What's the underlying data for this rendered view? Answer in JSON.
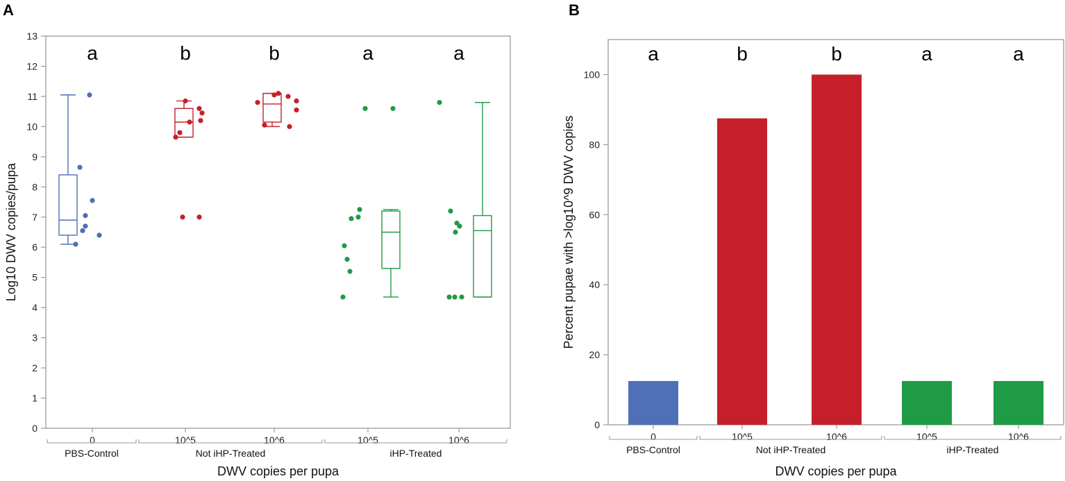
{
  "panels": {
    "a": {
      "letter": "A"
    },
    "b": {
      "letter": "B"
    }
  },
  "colors": {
    "blue": "#4f6fb6",
    "red": "#c5202a",
    "green": "#1f9b45",
    "frame": "#9a9a9a"
  },
  "chart_data": [
    {
      "type": "scatter",
      "subtype": "box-and-points",
      "panel": "A",
      "ylabel": "Log10 DWV copies/pupa",
      "xlabel": "DWV copies per pupa",
      "ylim": [
        0,
        13
      ],
      "yticks": [
        0,
        1,
        2,
        3,
        4,
        5,
        6,
        7,
        8,
        9,
        10,
        11,
        12,
        13
      ],
      "groups": [
        "PBS-Control",
        "Not iHP-Treated",
        "iHP-Treated"
      ],
      "categories": [
        {
          "label": "0",
          "group": "PBS-Control",
          "color": "#4f6fb6",
          "letter": "a",
          "box": {
            "whisker_low": 6.1,
            "q1": 6.4,
            "median": 6.9,
            "q3": 8.4,
            "whisker_high": 11.05
          },
          "points": [
            11.05,
            8.65,
            7.55,
            7.05,
            6.7,
            6.55,
            6.4,
            6.1
          ]
        },
        {
          "label": "10^5",
          "group": "Not iHP-Treated",
          "color": "#c5202a",
          "letter": "b",
          "box": {
            "whisker_low": 9.65,
            "q1": 9.65,
            "median": 10.15,
            "q3": 10.6,
            "whisker_high": 10.85
          },
          "points": [
            10.85,
            10.6,
            10.45,
            10.2,
            10.15,
            9.8,
            9.65,
            7.0,
            7.0
          ]
        },
        {
          "label": "10^6",
          "group": "Not iHP-Treated",
          "color": "#c5202a",
          "letter": "b",
          "box": {
            "whisker_low": 10.0,
            "q1": 10.15,
            "median": 10.75,
            "q3": 11.1,
            "whisker_high": 11.1
          },
          "points": [
            11.1,
            11.05,
            11.0,
            10.85,
            10.8,
            10.55,
            10.05,
            10.0
          ]
        },
        {
          "label": "10^5",
          "group": "iHP-Treated",
          "color": "#1f9b45",
          "letter": "a",
          "box": {
            "whisker_low": 4.35,
            "q1": 5.3,
            "median": 6.5,
            "q3": 7.2,
            "whisker_high": 7.25
          },
          "points": [
            10.6,
            10.6,
            7.25,
            7.0,
            6.95,
            6.05,
            5.6,
            5.2,
            4.35
          ]
        },
        {
          "label": "10^6",
          "group": "iHP-Treated",
          "color": "#1f9b45",
          "letter": "a",
          "box": {
            "whisker_low": 4.35,
            "q1": 4.35,
            "median": 6.55,
            "q3": 7.05,
            "whisker_high": 10.8
          },
          "points": [
            10.8,
            7.2,
            6.8,
            6.7,
            6.5,
            4.35,
            4.35,
            4.35
          ]
        }
      ]
    },
    {
      "type": "bar",
      "panel": "B",
      "ylabel": "Percent pupae with >log10^9 DWV copies",
      "xlabel": "DWV copies per pupa",
      "ylim": [
        0,
        110
      ],
      "yticks": [
        0,
        20,
        40,
        60,
        80,
        100
      ],
      "groups": [
        "PBS-Control",
        "Not iHP-Treated",
        "iHP-Treated"
      ],
      "categories": [
        {
          "label": "0",
          "group": "PBS-Control",
          "color": "#4f6fb6",
          "letter": "a",
          "value": 12.5
        },
        {
          "label": "10^5",
          "group": "Not iHP-Treated",
          "color": "#c5202a",
          "letter": "b",
          "value": 87.5
        },
        {
          "label": "10^6",
          "group": "Not iHP-Treated",
          "color": "#c5202a",
          "letter": "b",
          "value": 100
        },
        {
          "label": "10^5",
          "group": "iHP-Treated",
          "color": "#1f9b45",
          "letter": "a",
          "value": 12.5
        },
        {
          "label": "10^6",
          "group": "iHP-Treated",
          "color": "#1f9b45",
          "letter": "a",
          "value": 12.5
        }
      ]
    }
  ]
}
